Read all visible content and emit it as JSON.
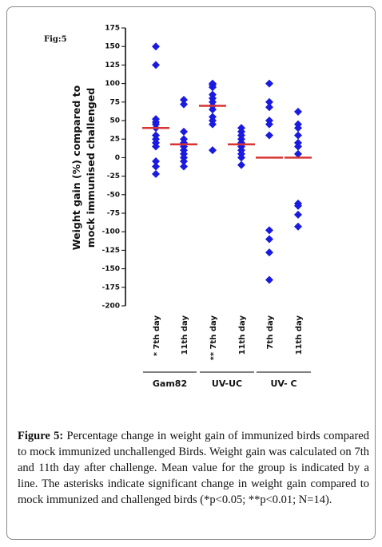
{
  "figure_label": "Fig:5",
  "chart_data": {
    "type": "strip",
    "ylabel": [
      "Weight gain (%) compared to",
      "mock immunised challenged"
    ],
    "categories": [
      "* 7th day",
      "11th day",
      "** 7th day",
      "11th day",
      "7th day",
      "11th day"
    ],
    "groups": [
      "Gam82",
      "UV-UC",
      "UV- C"
    ],
    "values": [
      [
        150,
        125,
        52,
        48,
        45,
        40,
        30,
        25,
        20,
        15,
        -5,
        -12,
        -22
      ],
      [
        78,
        72,
        35,
        25,
        20,
        15,
        10,
        5,
        0,
        -5,
        -12
      ],
      [
        100,
        98,
        95,
        85,
        80,
        75,
        70,
        65,
        55,
        50,
        45,
        10
      ],
      [
        40,
        35,
        30,
        25,
        20,
        15,
        10,
        5,
        0,
        -10
      ],
      [
        100,
        75,
        68,
        50,
        45,
        30,
        -98,
        -110,
        -128,
        -165
      ],
      [
        62,
        45,
        40,
        30,
        20,
        15,
        5,
        -62,
        -65,
        -77,
        -93
      ]
    ],
    "means": [
      40,
      18,
      70,
      18,
      0,
      0
    ],
    "color": "#1a1ae0",
    "mean_color": "#d83434",
    "ylim": [
      -200,
      175
    ],
    "yticks": [
      -200,
      -175,
      -150,
      -125,
      -100,
      -75,
      -50,
      -25,
      0,
      25,
      50,
      75,
      100,
      125,
      150,
      175
    ]
  },
  "caption": {
    "label": "Figure 5:",
    "text": "Percentage change in weight gain of immunized birds compared to mock immunized unchallenged Birds. Weight gain was calculated on 7th and 11th day after challenge. Mean value for the group is indicated by a line. The asterisks indicate significant change in weight gain compared to mock immunized and challenged birds (*p<0.05; **p<0.01; N=14)."
  }
}
